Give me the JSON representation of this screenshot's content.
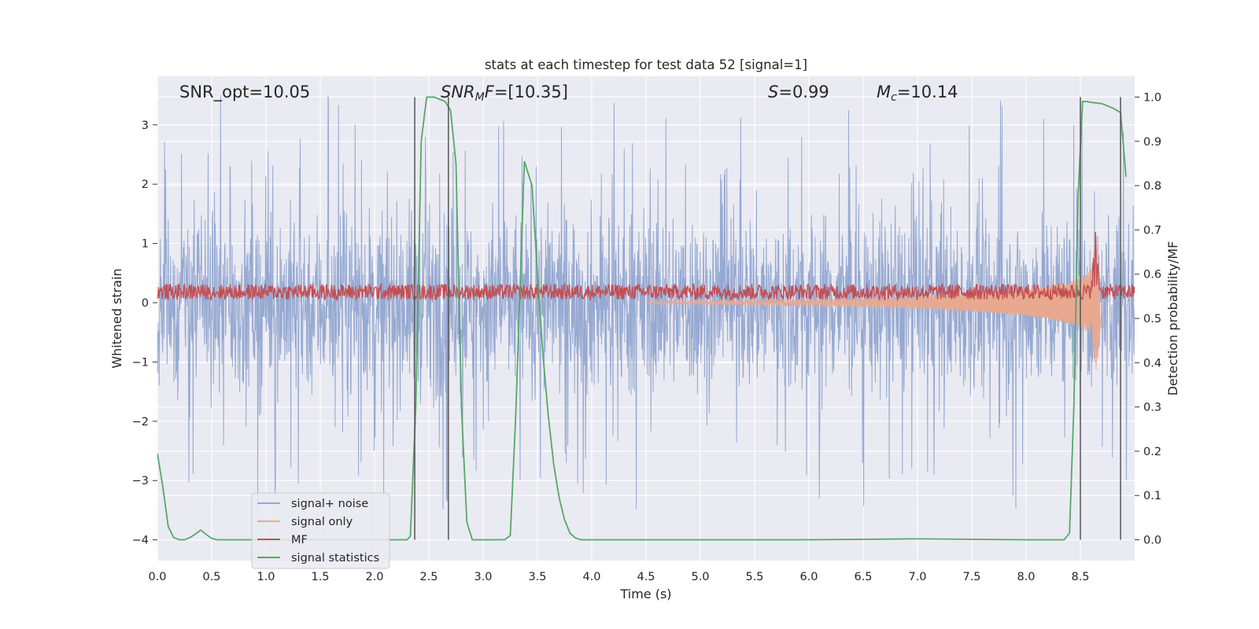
{
  "chart_data": {
    "type": "line",
    "title": "stats at each timestep for test data 52 [signal=1]",
    "xlabel": "Time (s)",
    "ylabel": "Whitened strain",
    "y2label": "Detection probability/MF",
    "xlim": [
      0,
      9.0
    ],
    "ylim": [
      -4.35,
      3.82
    ],
    "y2lim": [
      -0.047,
      1.047
    ],
    "x_ticks": [
      "0.0",
      "0.5",
      "1.0",
      "1.5",
      "2.0",
      "2.5",
      "3.0",
      "3.5",
      "4.0",
      "4.5",
      "5.0",
      "5.5",
      "6.0",
      "6.5",
      "7.0",
      "7.5",
      "8.0",
      "8.5"
    ],
    "y_ticks": [
      "3",
      "2",
      "1",
      "0",
      "−1",
      "−2",
      "−3",
      "−4"
    ],
    "y2_ticks": [
      "1.0",
      "0.9",
      "0.8",
      "0.7",
      "0.6",
      "0.5",
      "0.4",
      "0.3",
      "0.2",
      "0.1",
      "0.0"
    ],
    "grid": true,
    "legend_position": "lower-left",
    "legend": [
      {
        "label": "signal+ noise",
        "color": "#96a9d1"
      },
      {
        "label": "signal only",
        "color": "#e8a990"
      },
      {
        "label": "MF",
        "color": "#c44e52"
      },
      {
        "label": "signal statistics",
        "color": "#55a868"
      }
    ],
    "annotations": [
      {
        "prefix": "SNR_opt",
        "value": "=10.05"
      },
      {
        "prefix": "SNR",
        "sub": "M",
        "suffix": "F",
        "value": "=[10.35]"
      },
      {
        "prefix": "S",
        "value": "=0.99"
      },
      {
        "prefix": "M",
        "sub": "c",
        "value": "=10.14"
      }
    ],
    "vertical_lines_x": [
      2.37,
      2.68,
      8.5,
      8.87
    ],
    "series": [
      {
        "name": "signal+ noise",
        "color": "#96a9d1",
        "style": "dense noise, core envelope approx ±1.7, spikes to approx ±3.5",
        "envelope": [
          -1.7,
          1.7
        ],
        "peak_range": [
          -4.0,
          3.5
        ]
      },
      {
        "name": "signal only",
        "color": "#e8a990",
        "style": "chirp of growing amplitude ending near x=8.65",
        "x": [
          4.5,
          5.0,
          5.5,
          6.0,
          6.5,
          7.0,
          7.5,
          8.0,
          8.2,
          8.4,
          8.5,
          8.6,
          8.65,
          8.7
        ],
        "amplitude": [
          0.02,
          0.03,
          0.04,
          0.05,
          0.07,
          0.1,
          0.15,
          0.22,
          0.28,
          0.36,
          0.42,
          0.55,
          1.2,
          0.0
        ]
      },
      {
        "name": "MF",
        "color": "#c44e52",
        "axis": "right",
        "style": "noisy band around 0.56 (right axis), peak near x=8.64",
        "baseline": 0.56,
        "band": 0.018,
        "peak": {
          "x": 8.64,
          "y": 0.68
        }
      },
      {
        "name": "signal statistics",
        "color": "#55a868",
        "axis": "right",
        "x": [
          0.0,
          0.05,
          0.1,
          0.15,
          0.2,
          0.25,
          0.3,
          0.35,
          0.4,
          0.45,
          0.5,
          0.55,
          1.0,
          1.5,
          2.0,
          2.3,
          2.33,
          2.38,
          2.43,
          2.48,
          2.55,
          2.65,
          2.7,
          2.75,
          2.8,
          2.85,
          2.9,
          3.0,
          3.1,
          3.2,
          3.25,
          3.3,
          3.38,
          3.45,
          3.5,
          3.55,
          3.6,
          3.65,
          3.7,
          3.75,
          3.8,
          3.85,
          3.9,
          4.0,
          5.0,
          6.0,
          7.0,
          8.0,
          8.35,
          8.4,
          8.44,
          8.48,
          8.52,
          8.56,
          8.6,
          8.7,
          8.8,
          8.87,
          8.92
        ],
        "y": [
          0.195,
          0.12,
          0.03,
          0.005,
          0.0,
          0.0,
          0.005,
          0.013,
          0.022,
          0.012,
          0.003,
          0.0,
          0.0,
          0.0,
          0.0,
          0.0,
          0.008,
          0.3,
          0.9,
          1.0,
          1.0,
          0.99,
          0.97,
          0.85,
          0.3,
          0.04,
          0.0,
          0.0,
          0.0,
          0.0,
          0.01,
          0.28,
          0.855,
          0.8,
          0.6,
          0.42,
          0.28,
          0.17,
          0.095,
          0.045,
          0.015,
          0.004,
          0.0,
          0.0,
          0.0,
          0.0,
          0.002,
          0.0,
          0.0,
          0.015,
          0.3,
          0.78,
          0.99,
          0.99,
          0.988,
          0.985,
          0.975,
          0.965,
          0.82
        ]
      }
    ]
  }
}
